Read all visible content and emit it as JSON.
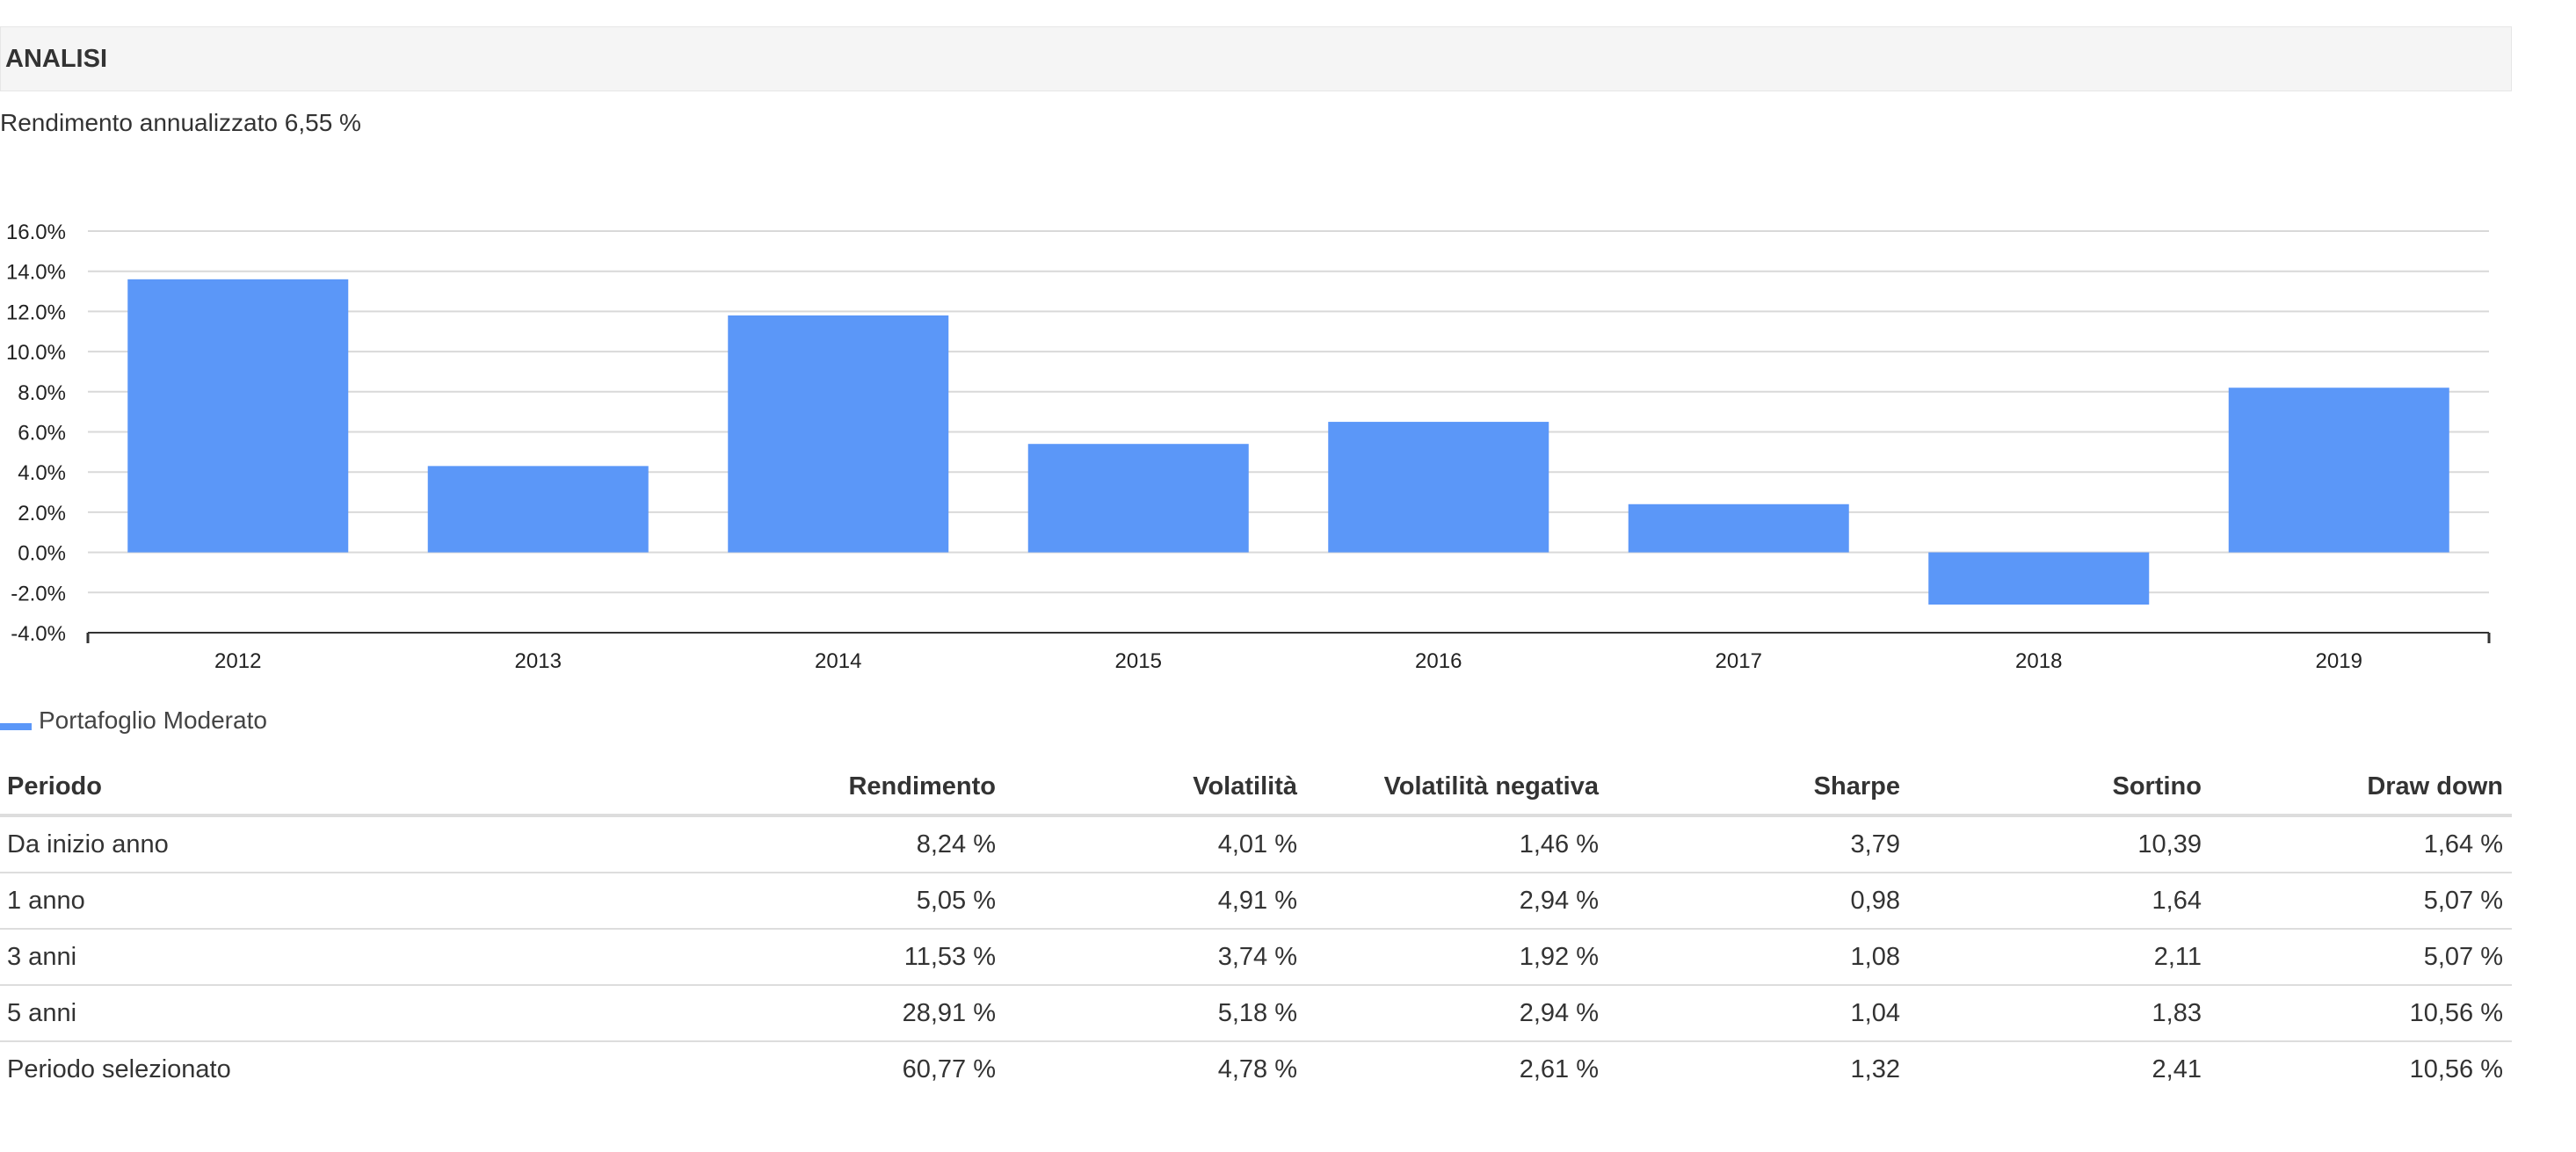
{
  "section": {
    "title": "ANALISI",
    "annual_return": "Rendimento annualizzato 6,55 %"
  },
  "chart_data": {
    "type": "bar",
    "categories": [
      "2012",
      "2013",
      "2014",
      "2015",
      "2016",
      "2017",
      "2018",
      "2019"
    ],
    "series": [
      {
        "name": "Portafoglio Moderato",
        "values": [
          13.6,
          4.3,
          11.8,
          5.4,
          6.5,
          2.4,
          -2.6,
          8.2
        ],
        "color": "#5b97f8"
      }
    ],
    "ylim": [
      -4,
      16
    ],
    "yticks": [
      -4,
      -2,
      0,
      2,
      4,
      6,
      8,
      10,
      12,
      14,
      16
    ],
    "ytick_labels": [
      "-4.0%",
      "-2.0%",
      "0.0%",
      "2.0%",
      "4.0%",
      "6.0%",
      "8.0%",
      "10.0%",
      "12.0%",
      "14.0%",
      "16.0%"
    ],
    "grid": true,
    "legend": "bottom-left",
    "title": "",
    "xlabel": "",
    "ylabel": ""
  },
  "legend": {
    "label": "Portafoglio Moderato",
    "color": "#5b97f8"
  },
  "table": {
    "headers": [
      "Periodo",
      "Rendimento",
      "Volatilità",
      "Volatilità negativa",
      "Sharpe",
      "Sortino",
      "Draw down"
    ],
    "rows": [
      [
        "Da inizio anno",
        "8,24 %",
        "4,01 %",
        "1,46 %",
        "3,79",
        "10,39",
        "1,64 %"
      ],
      [
        "1 anno",
        "5,05 %",
        "4,91 %",
        "2,94 %",
        "0,98",
        "1,64",
        "5,07 %"
      ],
      [
        "3 anni",
        "11,53 %",
        "3,74 %",
        "1,92 %",
        "1,08",
        "2,11",
        "5,07 %"
      ],
      [
        "5 anni",
        "28,91 %",
        "5,18 %",
        "2,94 %",
        "1,04",
        "1,83",
        "10,56 %"
      ],
      [
        "Periodo selezionato",
        "60,77 %",
        "4,78 %",
        "2,61 %",
        "1,32",
        "2,41",
        "10,56 %"
      ]
    ]
  }
}
